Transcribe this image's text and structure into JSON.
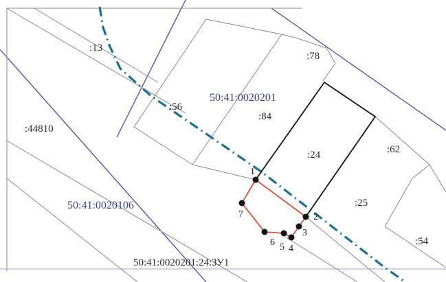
{
  "colors": {
    "background": "#ffffff",
    "quarter_boundary": "#4a4aa8",
    "parcel_boundary": "#7a7a7a",
    "target_parcel": "#111111",
    "new_parcel": "#e0503a",
    "dashed_line": "#1f6f8f",
    "blue_label": "#3a3f98",
    "label": "#2b2b2b"
  },
  "labels": {
    "p13": ":13",
    "p78": ":78",
    "p56": ":56",
    "p84": ":84",
    "p44810": ":44810",
    "p24": ":24",
    "p62": ":62",
    "p25": ":25",
    "p54": ":54",
    "quarter_0020201": "50:41:0020201",
    "quarter_0020106": "50:41:0020106",
    "new_parcel_id": "50:41:0020201:24:ЗУ1"
  },
  "points": {
    "n1": "1",
    "n2": "2",
    "n3": "3",
    "n4": "4",
    "n5": "5",
    "n6": "6",
    "n7": "7"
  }
}
